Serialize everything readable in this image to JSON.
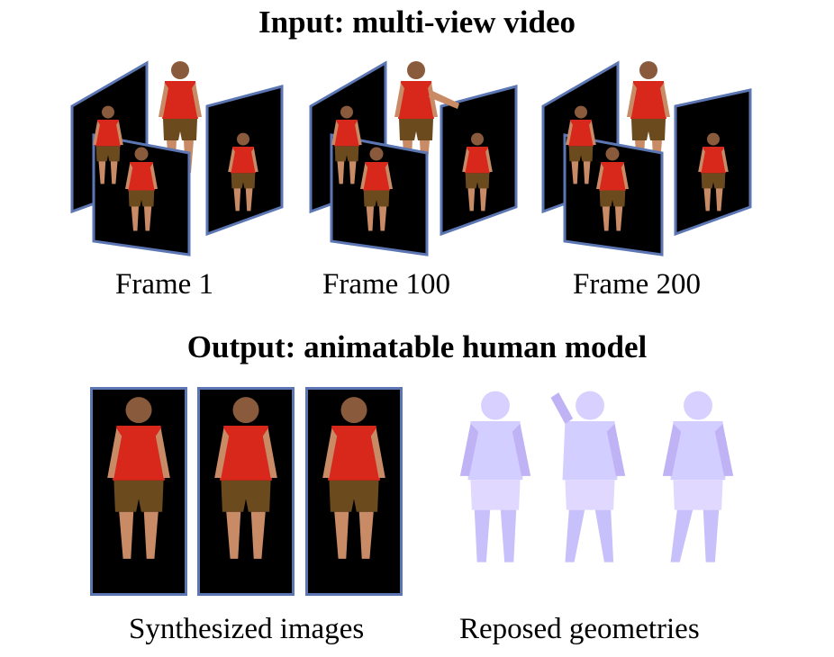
{
  "input_section": {
    "title": "Input: multi-view video",
    "frames": [
      {
        "label": "Frame 1"
      },
      {
        "label": "Frame 100"
      },
      {
        "label": "Frame 200"
      }
    ]
  },
  "output_section": {
    "title": "Output: animatable human model",
    "synthesized_label": "Synthesized images",
    "reposed_label": "Reposed geometries"
  },
  "colors": {
    "panel_border": "#5b76b3",
    "panel_fill": "#000000",
    "shirt": "#d8281c",
    "skin": "#c98a66",
    "shorts": "#6b4a1e",
    "mesh_light": "#dcd6ff",
    "mesh_shadow": "#b7a6f0"
  }
}
